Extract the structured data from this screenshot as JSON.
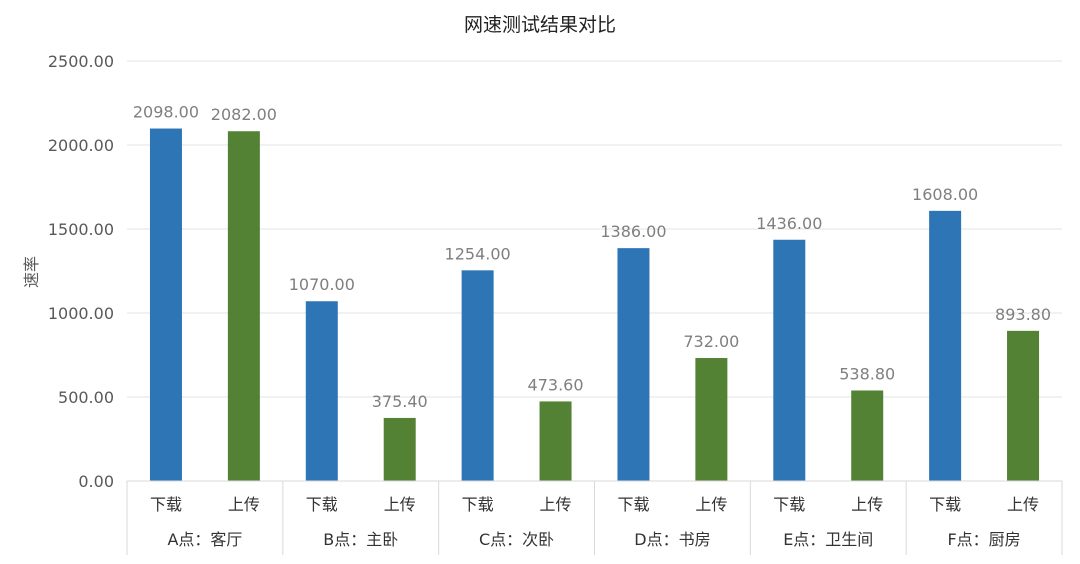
{
  "chart_data": {
    "type": "bar",
    "title": "网速测试结果对比",
    "ylabel": "速率",
    "xlabel": "",
    "ylim": [
      0,
      2500
    ],
    "yticks": [
      "0.00",
      "500.00",
      "1000.00",
      "1500.00",
      "2000.00",
      "2500.00"
    ],
    "grid": true,
    "legend": "none",
    "colors": {
      "下载": "#2e75b6",
      "上传": "#548235"
    },
    "groups": [
      {
        "label": "A点：客厅",
        "bars": [
          {
            "label": "下载",
            "value": 2098.0,
            "text": "2098.00"
          },
          {
            "label": "上传",
            "value": 2082.0,
            "text": "2082.00"
          }
        ]
      },
      {
        "label": "B点：主卧",
        "bars": [
          {
            "label": "下载",
            "value": 1070.0,
            "text": "1070.00"
          },
          {
            "label": "上传",
            "value": 375.4,
            "text": "375.40"
          }
        ]
      },
      {
        "label": "C点：次卧",
        "bars": [
          {
            "label": "下载",
            "value": 1254.0,
            "text": "1254.00"
          },
          {
            "label": "上传",
            "value": 473.6,
            "text": "473.60"
          }
        ]
      },
      {
        "label": "D点：书房",
        "bars": [
          {
            "label": "下载",
            "value": 1386.0,
            "text": "1386.00"
          },
          {
            "label": "上传",
            "value": 732.0,
            "text": "732.00"
          }
        ]
      },
      {
        "label": "E点：卫生间",
        "bars": [
          {
            "label": "下载",
            "value": 1436.0,
            "text": "1436.00"
          },
          {
            "label": "上传",
            "value": 538.8,
            "text": "538.80"
          }
        ]
      },
      {
        "label": "F点：厨房",
        "bars": [
          {
            "label": "下载",
            "value": 1608.0,
            "text": "1608.00"
          },
          {
            "label": "上传",
            "value": 893.8,
            "text": "893.80"
          }
        ]
      }
    ]
  }
}
